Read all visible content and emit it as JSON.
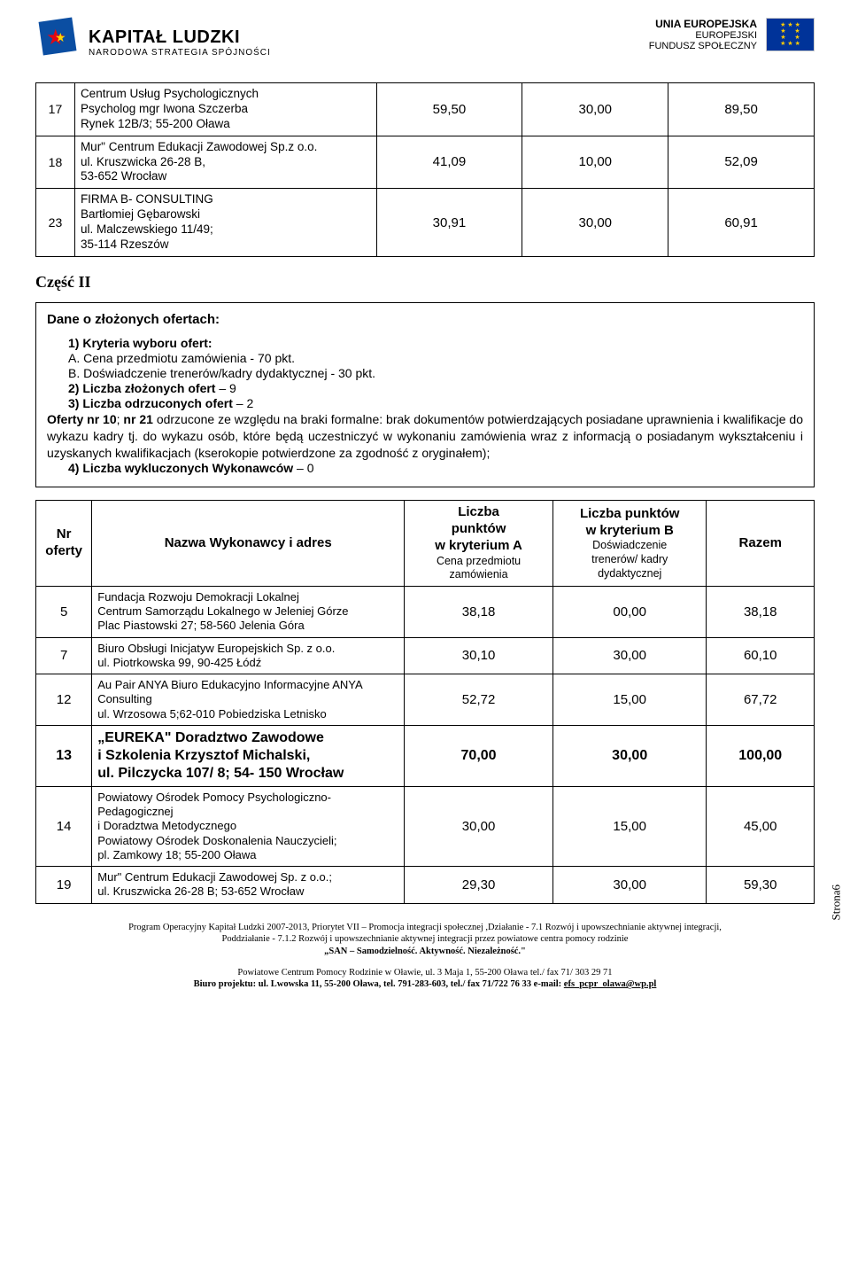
{
  "header": {
    "left_logo_line1": "KAPITAŁ LUDZKI",
    "left_logo_line2": "NARODOWA STRATEGIA SPÓJNOŚCI",
    "right_line1": "UNIA EUROPEJSKA",
    "right_line2": "EUROPEJSKI",
    "right_line3": "FUNDUSZ SPOŁECZNY"
  },
  "table1": {
    "rows": [
      {
        "num": "17",
        "name": "Centrum Usług Psychologicznych\nPsycholog mgr Iwona Szczerba\nRynek 12B/3; 55-200 Oława",
        "a": "59,50",
        "b": "30,00",
        "sum": "89,50"
      },
      {
        "num": "18",
        "name": "Mur\" Centrum Edukacji Zawodowej Sp.z o.o.\nul. Kruszwicka 26-28 B,\n53-652 Wrocław",
        "a": "41,09",
        "b": "10,00",
        "sum": "52,09"
      },
      {
        "num": "23",
        "name": "FIRMA B- CONSULTING\nBartłomiej Gębarowski\nul. Malczewskiego 11/49;\n35-114 Rzeszów",
        "a": "30,91",
        "b": "30,00",
        "sum": "60,91"
      }
    ]
  },
  "part2_title": "Część II",
  "info": {
    "heading": "Dane o złożonych ofertach:",
    "item1_label": "1) Kryteria wyboru ofert:",
    "item1_a": "A. Cena przedmiotu zamówienia - 70 pkt.",
    "item1_b": "B. Doświadczenie trenerów/kadry dydaktycznej - 30 pkt.",
    "item2_label": "2) Liczba złożonych ofert",
    "item2_val": " – 9",
    "item3_label": "3) Liczba odrzuconych ofert",
    "item3_val": " – 2",
    "rejected_text": "Oferty nr 10; nr 21 odrzucone ze względu na braki formalne: brak dokumentów potwierdzających posiadane uprawnienia i kwalifikacje do wykazu kadry tj. do wykazu osób, które będą uczestniczyć w wykonaniu zamówienia wraz z informacją o posiadanym wykształceniu i uzyskanych kwalifikacjach (kserokopie potwierdzone  za zgodność z oryginałem);",
    "rejected_bold_prefix": "Oferty nr 10",
    "rejected_bold_mid": "nr 21",
    "item4_label": "4) Liczba wykluczonych Wykonawców",
    "item4_val": " – 0"
  },
  "table2": {
    "head": {
      "col1_l1": "Nr",
      "col1_l2": "oferty",
      "col2": "Nazwa Wykonawcy i adres",
      "col3_l1": "Liczba",
      "col3_l2": "punktów",
      "col3_l3": "w kryterium A",
      "col3_l4": "Cena przedmiotu",
      "col3_l5": "zamówienia",
      "col4_l1": "Liczba punktów",
      "col4_l2": "w kryterium B",
      "col4_l3": "Doświadczenie",
      "col4_l4": "trenerów/ kadry",
      "col4_l5": "dydaktycznej",
      "col5": "Razem"
    },
    "rows": [
      {
        "num": "5",
        "name": "Fundacja Rozwoju Demokracji Lokalnej\nCentrum Samorządu Lokalnego  w Jeleniej Górze\nPlac Piastowski 27; 58-560 Jelenia Góra",
        "a": "38,18",
        "b": "00,00",
        "sum": "38,18",
        "hl": false
      },
      {
        "num": "7",
        "name": "Biuro Obsługi Inicjatyw Europejskich  Sp. z o.o.\nul. Piotrkowska 99, 90-425 Łódź",
        "a": "30,10",
        "b": "30,00",
        "sum": "60,10",
        "hl": false
      },
      {
        "num": "12",
        "name": "Au Pair ANYA Biuro Edukacyjno Informacyjne ANYA Consulting\nul. Wrzosowa 5;62-010 Pobiedziska Letnisko",
        "a": "52,72",
        "b": "15,00",
        "sum": "67,72",
        "hl": false
      },
      {
        "num": "13",
        "name": "„EUREKA\" Doradztwo Zawodowe\ni Szkolenia Krzysztof Michalski,\nul. Pilczycka 107/ 8; 54- 150 Wrocław",
        "a": "70,00",
        "b": "30,00",
        "sum": "100,00",
        "hl": true
      },
      {
        "num": "14",
        "name": "Powiatowy Ośrodek Pomocy Psychologiczno-Pedagogicznej\ni Doradztwa Metodycznego\nPowiatowy Ośrodek Doskonalenia Nauczycieli;\npl. Zamkowy 18; 55-200 Oława",
        "a": "30,00",
        "b": "15,00",
        "sum": "45,00",
        "hl": false
      },
      {
        "num": "19",
        "name": "Mur\" Centrum Edukacji Zawodowej Sp. z o.o.;\nul. Kruszwicka 26-28 B; 53-652 Wrocław",
        "a": "29,30",
        "b": "30,00",
        "sum": "59,30",
        "hl": false
      }
    ]
  },
  "footer": {
    "l1": "Program Operacyjny  Kapitał Ludzki 2007-2013, Priorytet VII – Promocja integracji społecznej ,Działanie - 7.1 Rozwój i upowszechnianie aktywnej integracji,",
    "l2": "Poddziałanie - 7.1.2 Rozwój i upowszechnianie aktywnej integracji przez powiatowe centra pomocy rodzinie",
    "l3": "„SAN – Samodzielność. Aktywność. Niezależność.\"",
    "l4": "Powiatowe Centrum Pomocy Rodzinie w Oławie, ul. 3 Maja 1, 55-200 Oława tel./ fax  71/ 303 29 71",
    "l5_a": "Biuro projektu: ul. Lwowska 11, 55-200 Oława, tel. 791-283-603, tel./ fax  71/722 76 33  e-mail: ",
    "l5_b": "efs_pcpr_olawa@wp.pl"
  },
  "page_label": "Strona6"
}
